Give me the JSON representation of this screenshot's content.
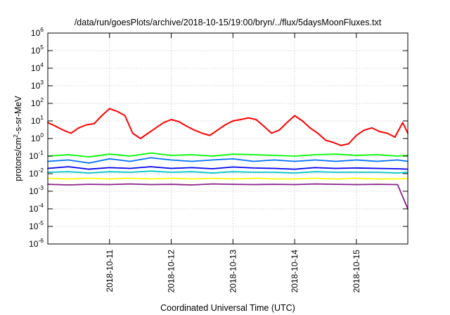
{
  "chart_data": {
    "type": "line",
    "title": "/data/run/goesPlots/archive/2018-10-15/19:00/bryn/../flux/5daysMoonFluxes.txt",
    "xlabel": "Coordinated Universal Time (UTC)",
    "ylabel": {
      "prefix": "protons/cm",
      "exponent": "2",
      "suffix": "-s-sr-MeV"
    },
    "yscale": "log",
    "ylim": [
      1e-06,
      1000000.0
    ],
    "y_ticks": [
      {
        "base": "10",
        "exp": "-6"
      },
      {
        "base": "10",
        "exp": "-5"
      },
      {
        "base": "10",
        "exp": "-4"
      },
      {
        "base": "10",
        "exp": "-3"
      },
      {
        "base": "10",
        "exp": "-2"
      },
      {
        "base": "10",
        "exp": "-1"
      },
      {
        "base": "10",
        "exp": "0"
      },
      {
        "base": "10",
        "exp": "1"
      },
      {
        "base": "10",
        "exp": "2"
      },
      {
        "base": "10",
        "exp": "3"
      },
      {
        "base": "10",
        "exp": "4"
      },
      {
        "base": "10",
        "exp": "5"
      },
      {
        "base": "10",
        "exp": "6"
      }
    ],
    "xlim": [
      "2018-10-10T00:00",
      "2018-10-15T20:00"
    ],
    "x_ticks": [
      "2018-10-11",
      "2018-10-12",
      "2018-10-13",
      "2018-10-14",
      "2018-10-15"
    ],
    "grid": true,
    "series": [
      {
        "color": "#ff0000",
        "x": [
          "2018-10-10T00:00",
          "2018-10-10T03:00",
          "2018-10-10T06:00",
          "2018-10-10T09:00",
          "2018-10-10T12:00",
          "2018-10-10T15:00",
          "2018-10-10T18:00",
          "2018-10-10T21:00",
          "2018-10-11T00:00",
          "2018-10-11T03:00",
          "2018-10-11T06:00",
          "2018-10-11T09:00",
          "2018-10-11T12:00",
          "2018-10-11T15:00",
          "2018-10-11T18:00",
          "2018-10-11T21:00",
          "2018-10-12T00:00",
          "2018-10-12T03:00",
          "2018-10-12T06:00",
          "2018-10-12T09:00",
          "2018-10-12T12:00",
          "2018-10-12T15:00",
          "2018-10-12T18:00",
          "2018-10-12T21:00",
          "2018-10-13T00:00",
          "2018-10-13T03:00",
          "2018-10-13T06:00",
          "2018-10-13T09:00",
          "2018-10-13T12:00",
          "2018-10-13T15:00",
          "2018-10-13T18:00",
          "2018-10-13T21:00",
          "2018-10-14T00:00",
          "2018-10-14T03:00",
          "2018-10-14T06:00",
          "2018-10-14T09:00",
          "2018-10-14T12:00",
          "2018-10-14T15:00",
          "2018-10-14T18:00",
          "2018-10-14T21:00",
          "2018-10-15T00:00",
          "2018-10-15T03:00",
          "2018-10-15T06:00",
          "2018-10-15T09:00",
          "2018-10-15T12:00",
          "2018-10-15T15:00",
          "2018-10-15T18:00",
          "2018-10-15T20:00"
        ],
        "values": [
          8,
          5,
          3,
          2,
          4,
          6,
          7,
          20,
          50,
          35,
          20,
          2,
          1,
          2,
          4,
          8,
          12,
          9,
          5,
          3,
          2,
          1.5,
          3,
          6,
          10,
          12,
          15,
          12,
          5,
          2,
          3,
          8,
          20,
          10,
          4,
          2,
          0.8,
          0.6,
          0.4,
          0.5,
          1.5,
          3,
          4,
          2.5,
          2,
          1.2,
          8,
          2
        ]
      },
      {
        "color": "#00ff00",
        "x": [
          "2018-10-10T00:00",
          "2018-10-10T08:00",
          "2018-10-10T16:00",
          "2018-10-11T00:00",
          "2018-10-11T08:00",
          "2018-10-11T16:00",
          "2018-10-12T00:00",
          "2018-10-12T08:00",
          "2018-10-12T16:00",
          "2018-10-13T00:00",
          "2018-10-13T08:00",
          "2018-10-13T16:00",
          "2018-10-14T00:00",
          "2018-10-14T08:00",
          "2018-10-14T16:00",
          "2018-10-15T00:00",
          "2018-10-15T08:00",
          "2018-10-15T16:00",
          "2018-10-15T20:00"
        ],
        "values": [
          0.1,
          0.12,
          0.09,
          0.13,
          0.1,
          0.15,
          0.11,
          0.12,
          0.1,
          0.13,
          0.12,
          0.11,
          0.1,
          0.12,
          0.13,
          0.11,
          0.12,
          0.1,
          0.11
        ]
      },
      {
        "color": "#0070ff",
        "x": [
          "2018-10-10T00:00",
          "2018-10-10T08:00",
          "2018-10-10T16:00",
          "2018-10-11T00:00",
          "2018-10-11T08:00",
          "2018-10-11T16:00",
          "2018-10-12T00:00",
          "2018-10-12T08:00",
          "2018-10-12T16:00",
          "2018-10-13T00:00",
          "2018-10-13T08:00",
          "2018-10-13T16:00",
          "2018-10-14T00:00",
          "2018-10-14T08:00",
          "2018-10-14T16:00",
          "2018-10-15T00:00",
          "2018-10-15T08:00",
          "2018-10-15T16:00",
          "2018-10-15T20:00"
        ],
        "values": [
          0.05,
          0.06,
          0.04,
          0.07,
          0.05,
          0.08,
          0.06,
          0.05,
          0.06,
          0.07,
          0.05,
          0.06,
          0.05,
          0.06,
          0.05,
          0.06,
          0.05,
          0.06,
          0.05
        ]
      },
      {
        "color": "#0000ee",
        "x": [
          "2018-10-10T00:00",
          "2018-10-10T08:00",
          "2018-10-10T16:00",
          "2018-10-11T00:00",
          "2018-10-11T08:00",
          "2018-10-11T16:00",
          "2018-10-12T00:00",
          "2018-10-12T08:00",
          "2018-10-12T16:00",
          "2018-10-13T00:00",
          "2018-10-13T08:00",
          "2018-10-13T16:00",
          "2018-10-14T00:00",
          "2018-10-14T08:00",
          "2018-10-14T16:00",
          "2018-10-15T00:00",
          "2018-10-15T08:00",
          "2018-10-15T16:00",
          "2018-10-15T20:00"
        ],
        "values": [
          0.02,
          0.025,
          0.018,
          0.022,
          0.02,
          0.025,
          0.02,
          0.022,
          0.019,
          0.024,
          0.021,
          0.02,
          0.018,
          0.022,
          0.02,
          0.021,
          0.02,
          0.019,
          0.018
        ]
      },
      {
        "color": "#00c8c8",
        "x": [
          "2018-10-10T00:00",
          "2018-10-10T08:00",
          "2018-10-10T16:00",
          "2018-10-11T00:00",
          "2018-10-11T08:00",
          "2018-10-11T16:00",
          "2018-10-12T00:00",
          "2018-10-12T08:00",
          "2018-10-12T16:00",
          "2018-10-13T00:00",
          "2018-10-13T08:00",
          "2018-10-13T16:00",
          "2018-10-14T00:00",
          "2018-10-14T08:00",
          "2018-10-14T16:00",
          "2018-10-15T00:00",
          "2018-10-15T08:00",
          "2018-10-15T16:00",
          "2018-10-15T20:00"
        ],
        "values": [
          0.012,
          0.013,
          0.011,
          0.013,
          0.012,
          0.014,
          0.012,
          0.013,
          0.011,
          0.013,
          0.012,
          0.012,
          0.011,
          0.013,
          0.012,
          0.012,
          0.012,
          0.011,
          0.012
        ]
      },
      {
        "color": "#ffff00",
        "x": [
          "2018-10-10T00:00",
          "2018-10-10T08:00",
          "2018-10-10T16:00",
          "2018-10-11T00:00",
          "2018-10-11T08:00",
          "2018-10-11T16:00",
          "2018-10-12T00:00",
          "2018-10-12T08:00",
          "2018-10-12T16:00",
          "2018-10-13T00:00",
          "2018-10-13T08:00",
          "2018-10-13T16:00",
          "2018-10-14T00:00",
          "2018-10-14T08:00",
          "2018-10-14T16:00",
          "2018-10-15T00:00",
          "2018-10-15T08:00",
          "2018-10-15T16:00",
          "2018-10-15T20:00"
        ],
        "values": [
          0.0055,
          0.005,
          0.0055,
          0.005,
          0.0055,
          0.005,
          0.0055,
          0.005,
          0.0055,
          0.005,
          0.0055,
          0.005,
          0.005,
          0.0055,
          0.005,
          0.0055,
          0.005,
          0.005,
          0.0055
        ]
      },
      {
        "color": "#882288",
        "x": [
          "2018-10-10T00:00",
          "2018-10-10T08:00",
          "2018-10-10T16:00",
          "2018-10-11T00:00",
          "2018-10-11T08:00",
          "2018-10-11T16:00",
          "2018-10-12T00:00",
          "2018-10-12T08:00",
          "2018-10-12T16:00",
          "2018-10-13T00:00",
          "2018-10-13T08:00",
          "2018-10-13T16:00",
          "2018-10-14T00:00",
          "2018-10-14T08:00",
          "2018-10-14T16:00",
          "2018-10-15T00:00",
          "2018-10-15T08:00",
          "2018-10-15T16:00",
          "2018-10-15T20:00"
        ],
        "values": [
          0.0025,
          0.0023,
          0.0025,
          0.0024,
          0.0026,
          0.0024,
          0.0025,
          0.0023,
          0.0026,
          0.0025,
          0.0024,
          0.0025,
          0.0024,
          0.0026,
          0.0025,
          0.0024,
          0.0025,
          0.0024,
          0.0001
        ]
      }
    ]
  }
}
